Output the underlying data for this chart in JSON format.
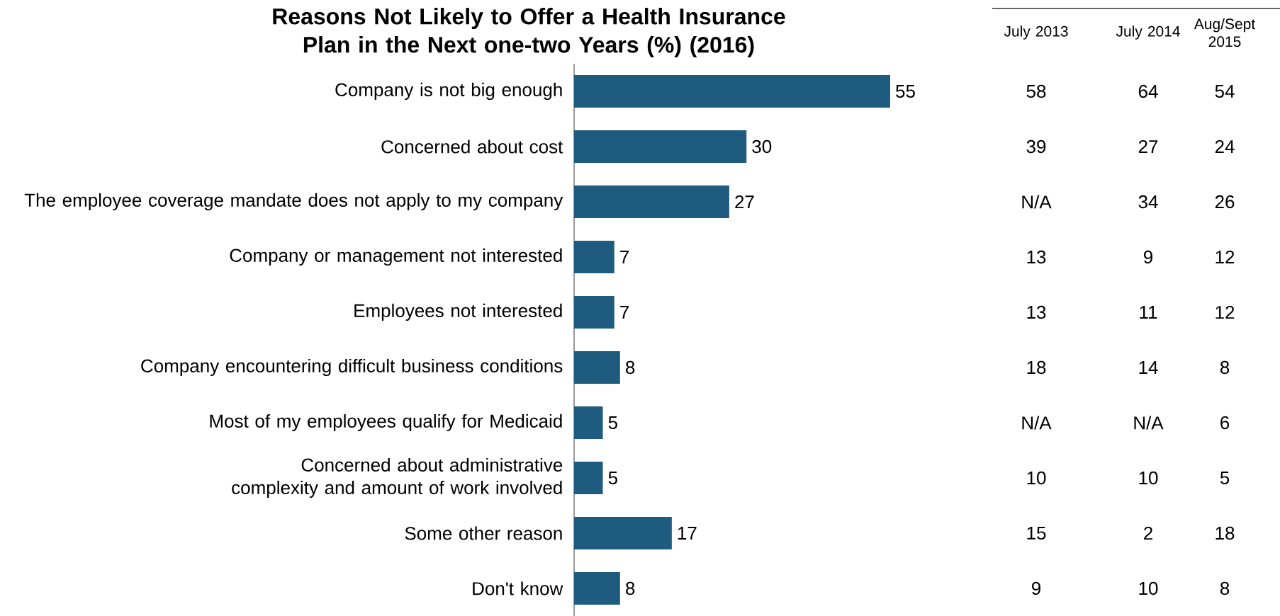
{
  "chart_data": {
    "type": "bar",
    "orientation": "horizontal",
    "title": "Reasons Not Likely to Offer a Health Insurance Plan in the Next  one-two Years  (%) (2016)",
    "categories": [
      "Company is not big enough",
      "Concerned about cost",
      "The employee coverage mandate does not apply to my company",
      "Company or management not interested",
      "Employees not interested",
      "Company encountering difficult business conditions",
      "Most of my employees qualify for Medicaid",
      "Concerned about administrative complexity and amount of work involved",
      "Some other reason",
      "Don't know"
    ],
    "values": [
      55,
      30,
      27,
      7,
      7,
      8,
      5,
      5,
      17,
      8
    ],
    "color": "#1f5b7f",
    "data_labels": true,
    "annotations": [
      "July 2013",
      "July 2014",
      "Aug/Sept 2015",
      "58",
      "64",
      "54",
      "39",
      "27",
      "24",
      "N/A",
      "34",
      "26",
      "13",
      "9",
      "12",
      "13",
      "11",
      "12",
      "18",
      "14",
      "8",
      "N/A",
      "N/A",
      "6",
      "10",
      "10",
      "5",
      "15",
      "2",
      "18",
      "9",
      "10",
      "8"
    ]
  }
}
